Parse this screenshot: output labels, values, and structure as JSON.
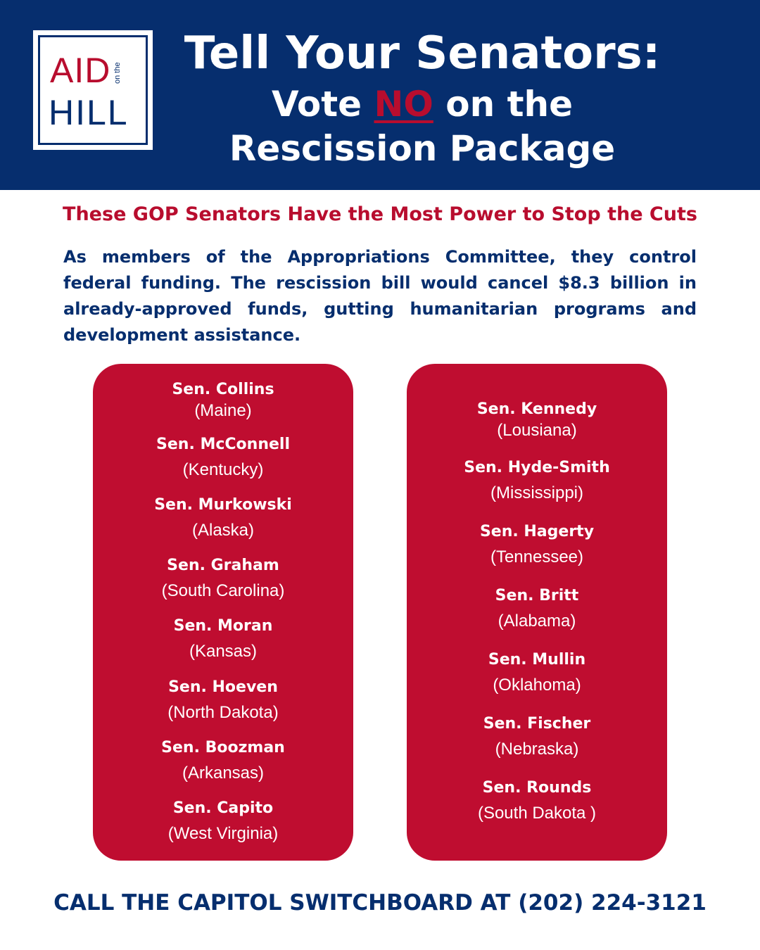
{
  "logo": {
    "word_top": "AID",
    "word_small": "on the",
    "word_bottom": "HILL"
  },
  "header": {
    "title_line1": "Tell Your Senators:",
    "title_line2_pre": "Vote ",
    "title_line2_emphasis": "NO",
    "title_line2_post": " on the",
    "title_line3": "Rescission Package"
  },
  "subhead": "These GOP Senators Have the Most Power to Stop the Cuts",
  "body": "As members of the Appropriations Committee, they control federal funding. The rescission bill would cancel $8.3 billion in already-approved funds, gutting humanitarian programs and development assistance.",
  "senators_left": [
    {
      "name": "Sen. Collins",
      "state": "(Maine)"
    },
    {
      "name": "Sen. McConnell",
      "state": "(Kentucky)"
    },
    {
      "name": "Sen. Murkowski",
      "state": "(Alaska)"
    },
    {
      "name": "Sen. Graham",
      "state": "(South Carolina)"
    },
    {
      "name": "Sen. Moran",
      "state": "(Kansas)"
    },
    {
      "name": "Sen. Hoeven",
      "state": "(North Dakota)"
    },
    {
      "name": "Sen. Boozman",
      "state": "(Arkansas)"
    },
    {
      "name": "Sen. Capito",
      "state": "(West Virginia)"
    }
  ],
  "senators_right": [
    {
      "name": "Sen. Kennedy",
      "state": "(Lousiana)"
    },
    {
      "name": "Sen. Hyde-Smith",
      "state": "(Mississippi)"
    },
    {
      "name": "Sen. Hagerty",
      "state": "(Tennessee)"
    },
    {
      "name": "Sen. Britt",
      "state": "(Alabama)"
    },
    {
      "name": "Sen. Mullin",
      "state": "(Oklahoma)"
    },
    {
      "name": "Sen. Fischer",
      "state": "(Nebraska)"
    },
    {
      "name": "Sen. Rounds",
      "state": "(South Dakota )"
    }
  ],
  "footer": "CALL THE CAPITOL SWITCHBOARD AT (202) 224-3121",
  "colors": {
    "navy": "#062e6e",
    "red": "#bf0d30",
    "white": "#ffffff"
  }
}
